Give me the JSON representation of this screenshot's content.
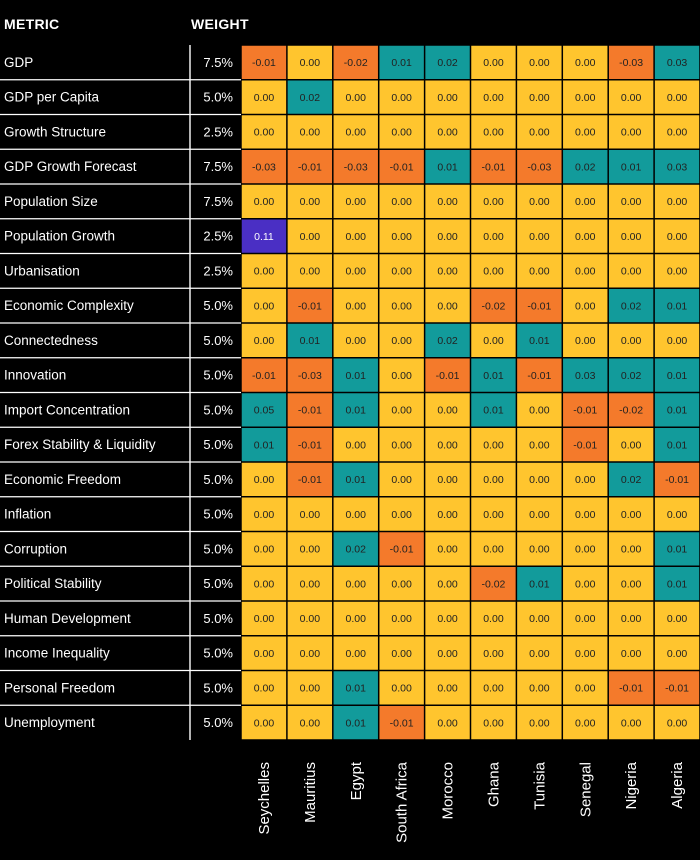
{
  "headers": {
    "metric": "METRIC",
    "weight": "WEIGHT"
  },
  "colors": {
    "zero": "#ffc52e",
    "positive": "#129b9b",
    "negative": "#f47a2b",
    "high": "#4a2fc4",
    "text_dark": "#222222",
    "text_light": "#ffffff"
  },
  "chart_data": {
    "type": "heatmap",
    "title": "",
    "xlabel": "",
    "ylabel": "",
    "columns": [
      "Seychelles",
      "Mauritius",
      "Egypt",
      "South Africa",
      "Morocco",
      "Ghana",
      "Tunisia",
      "Senegal",
      "Nigeria",
      "Algeria"
    ],
    "rows": [
      {
        "metric": "GDP",
        "weight": "7.5%",
        "values": [
          "-0.01",
          "0.00",
          "-0.02",
          "0.01",
          "0.02",
          "0.00",
          "0.00",
          "0.00",
          "-0.03",
          "0.03"
        ]
      },
      {
        "metric": "GDP per Capita",
        "weight": "5.0%",
        "values": [
          "0.00",
          "0.02",
          "0.00",
          "0.00",
          "0.00",
          "0.00",
          "0.00",
          "0.00",
          "0.00",
          "0.00"
        ]
      },
      {
        "metric": "Growth Structure",
        "weight": "2.5%",
        "values": [
          "0.00",
          "0.00",
          "0.00",
          "0.00",
          "0.00",
          "0.00",
          "0.00",
          "0.00",
          "0.00",
          "0.00"
        ]
      },
      {
        "metric": "GDP Growth Forecast",
        "weight": "7.5%",
        "values": [
          "-0.03",
          "-0.01",
          "-0.03",
          "-0.01",
          "0.01",
          "-0.01",
          "-0.03",
          "0.02",
          "0.01",
          "0.03"
        ]
      },
      {
        "metric": "Population Size",
        "weight": "7.5%",
        "values": [
          "0.00",
          "0.00",
          "0.00",
          "0.00",
          "0.00",
          "0.00",
          "0.00",
          "0.00",
          "0.00",
          "0.00"
        ]
      },
      {
        "metric": "Population Growth",
        "weight": "2.5%",
        "values": [
          "0.11",
          "0.00",
          "0.00",
          "0.00",
          "0.00",
          "0.00",
          "0.00",
          "0.00",
          "0.00",
          "0.00"
        ]
      },
      {
        "metric": "Urbanisation",
        "weight": "2.5%",
        "values": [
          "0.00",
          "0.00",
          "0.00",
          "0.00",
          "0.00",
          "0.00",
          "0.00",
          "0.00",
          "0.00",
          "0.00"
        ]
      },
      {
        "metric": "Economic Complexity",
        "weight": "5.0%",
        "values": [
          "0.00",
          "-0.01",
          "0.00",
          "0.00",
          "0.00",
          "-0.02",
          "-0.01",
          "0.00",
          "0.02",
          "0.01"
        ]
      },
      {
        "metric": "Connectedness",
        "weight": "5.0%",
        "values": [
          "0.00",
          "0.01",
          "0.00",
          "0.00",
          "0.02",
          "0.00",
          "0.01",
          "0.00",
          "0.00",
          "0.00"
        ]
      },
      {
        "metric": "Innovation",
        "weight": "5.0%",
        "values": [
          "-0.01",
          "-0.03",
          "0.01",
          "0.00",
          "-0.01",
          "0.01",
          "-0.01",
          "0.03",
          "0.02",
          "0.01"
        ]
      },
      {
        "metric": "Import Concentration",
        "weight": "5.0%",
        "values": [
          "0.05",
          "-0.01",
          "0.01",
          "0.00",
          "0.00",
          "0.01",
          "0.00",
          "-0.01",
          "-0.02",
          "0.01"
        ]
      },
      {
        "metric": "Forex Stability & Liquidity",
        "weight": "5.0%",
        "values": [
          "0.01",
          "-0.01",
          "0.00",
          "0.00",
          "0.00",
          "0.00",
          "0.00",
          "-0.01",
          "0.00",
          "0.01"
        ]
      },
      {
        "metric": "Economic Freedom",
        "weight": "5.0%",
        "values": [
          "0.00",
          "-0.01",
          "0.01",
          "0.00",
          "0.00",
          "0.00",
          "0.00",
          "0.00",
          "0.02",
          "-0.01"
        ]
      },
      {
        "metric": "Inflation",
        "weight": "5.0%",
        "values": [
          "0.00",
          "0.00",
          "0.00",
          "0.00",
          "0.00",
          "0.00",
          "0.00",
          "0.00",
          "0.00",
          "0.00"
        ]
      },
      {
        "metric": "Corruption",
        "weight": "5.0%",
        "values": [
          "0.00",
          "0.00",
          "0.02",
          "-0.01",
          "0.00",
          "0.00",
          "0.00",
          "0.00",
          "0.00",
          "0.01"
        ]
      },
      {
        "metric": "Political Stability",
        "weight": "5.0%",
        "values": [
          "0.00",
          "0.00",
          "0.00",
          "0.00",
          "0.00",
          "-0.02",
          "0.01",
          "0.00",
          "0.00",
          "0.01"
        ]
      },
      {
        "metric": "Human Development",
        "weight": "5.0%",
        "values": [
          "0.00",
          "0.00",
          "0.00",
          "0.00",
          "0.00",
          "0.00",
          "0.00",
          "0.00",
          "0.00",
          "0.00"
        ]
      },
      {
        "metric": "Income Inequality",
        "weight": "5.0%",
        "values": [
          "0.00",
          "0.00",
          "0.00",
          "0.00",
          "0.00",
          "0.00",
          "0.00",
          "0.00",
          "0.00",
          "0.00"
        ]
      },
      {
        "metric": "Personal Freedom",
        "weight": "5.0%",
        "values": [
          "0.00",
          "0.00",
          "0.01",
          "0.00",
          "0.00",
          "0.00",
          "0.00",
          "0.00",
          "-0.01",
          "-0.01"
        ]
      },
      {
        "metric": "Unemployment",
        "weight": "5.0%",
        "values": [
          "0.00",
          "0.00",
          "0.01",
          "-0.01",
          "0.00",
          "0.00",
          "0.00",
          "0.00",
          "0.00",
          "0.00"
        ]
      }
    ]
  }
}
